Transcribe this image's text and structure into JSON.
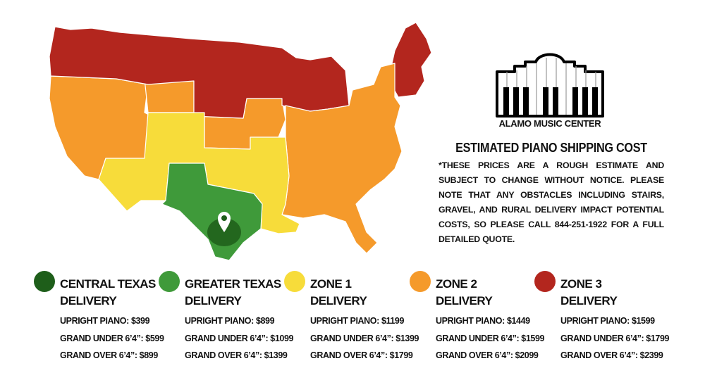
{
  "brand": {
    "name": "ALAMO MUSIC CENTER",
    "logo_icon": "alamo-piano-keys-logo"
  },
  "title": "ESTIMATED PIANO SHIPPING COST",
  "disclaimer": "*THESE PRICES ARE A ROUGH ESTIMATE AND SUBJECT TO CHANGE WITHOUT NOTICE. PLEASE NOTE THAT ANY OBSTACLES INCLUDING STAIRS, GRAVEL, AND RURAL DELIVERY IMPACT POTENTIAL COSTS, SO PLEASE CALL 844-251-1922 FOR A FULL DETAILED QUOTE.",
  "map": {
    "pin_icon": "location-pin-icon"
  },
  "zones": [
    {
      "name": "CENTRAL TEXAS",
      "suffix": "DELIVERY",
      "color": "#1e5e1a",
      "upright": "UPRIGHT PIANO: $399",
      "grand_under": "GRAND UNDER 6’4”: $599",
      "grand_over": "GRAND OVER 6’4”: $899"
    },
    {
      "name": "GREATER TEXAS",
      "suffix": "DELIVERY",
      "color": "#3f9a3a",
      "upright": "UPRIGHT PIANO: $899",
      "grand_under": "GRAND UNDER 6’4”: $1099",
      "grand_over": "GRAND OVER 6’4”: $1399"
    },
    {
      "name": "ZONE 1",
      "suffix": "DELIVERY",
      "color": "#f7dc3a",
      "upright": "UPRIGHT PIANO: $1199",
      "grand_under": "GRAND UNDER 6’4”: $1399",
      "grand_over": "GRAND OVER 6’4”: $1799"
    },
    {
      "name": "ZONE 2",
      "suffix": "DELIVERY",
      "color": "#f59a2b",
      "upright": "UPRIGHT PIANO: $1449",
      "grand_under": "GRAND UNDER 6’4”: $1599",
      "grand_over": "GRAND OVER 6’4”: $2099"
    },
    {
      "name": "ZONE 3",
      "suffix": "DELIVERY",
      "color": "#b3261e",
      "upright": "UPRIGHT PIANO: $1599",
      "grand_under": "GRAND UNDER 6’4”: $1799",
      "grand_over": "GRAND OVER 6’4”: $2399"
    }
  ]
}
